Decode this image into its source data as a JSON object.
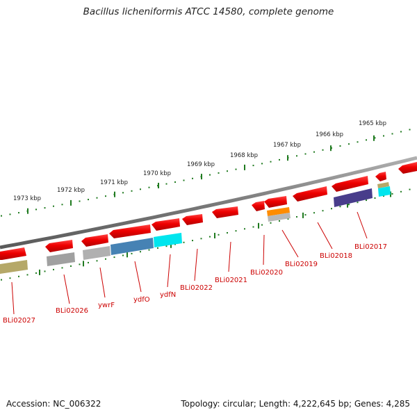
{
  "title": "Bacillus licheniformis ATCC 14580, complete genome",
  "footer": {
    "accession": "Accession: NC_006322",
    "summary": "Topology: circular; Length: 4,222,645 bp; Genes: 4,285"
  },
  "colors": {
    "backbone": "#808080",
    "tick_track": "#1f7a1f",
    "gene_label": "#cc0000",
    "cds": "#ee0000"
  },
  "scale": {
    "unit": "kbp",
    "labels": [
      "1973 kbp",
      "1972 kbp",
      "1971 kbp",
      "1970 kbp",
      "1969 kbp",
      "1968 kbp",
      "1967 kbp",
      "1966 kbp",
      "1965 kbp"
    ]
  },
  "genes": [
    {
      "name": "BLi02027",
      "cog_color": "#b5a868"
    },
    {
      "name": "BLi02026",
      "cog_color": "#a0a0a0"
    },
    {
      "name": "ywrF",
      "cog_color": "#b0b0b0"
    },
    {
      "name": "ydfO",
      "cog_color": "#4682b4"
    },
    {
      "name": "ydfN",
      "cog_color": "#00e5ee"
    },
    {
      "name": "BLi02022",
      "cog_color": ""
    },
    {
      "name": "BLi02021",
      "cog_color": ""
    },
    {
      "name": "BLi02020",
      "cog_color": ""
    },
    {
      "name": "BLi02019",
      "cog_color": "#ff8c00"
    },
    {
      "name": "BLi02018",
      "cog_color": ""
    },
    {
      "name": "BLi02017",
      "cog_color": "#483d8b"
    }
  ]
}
